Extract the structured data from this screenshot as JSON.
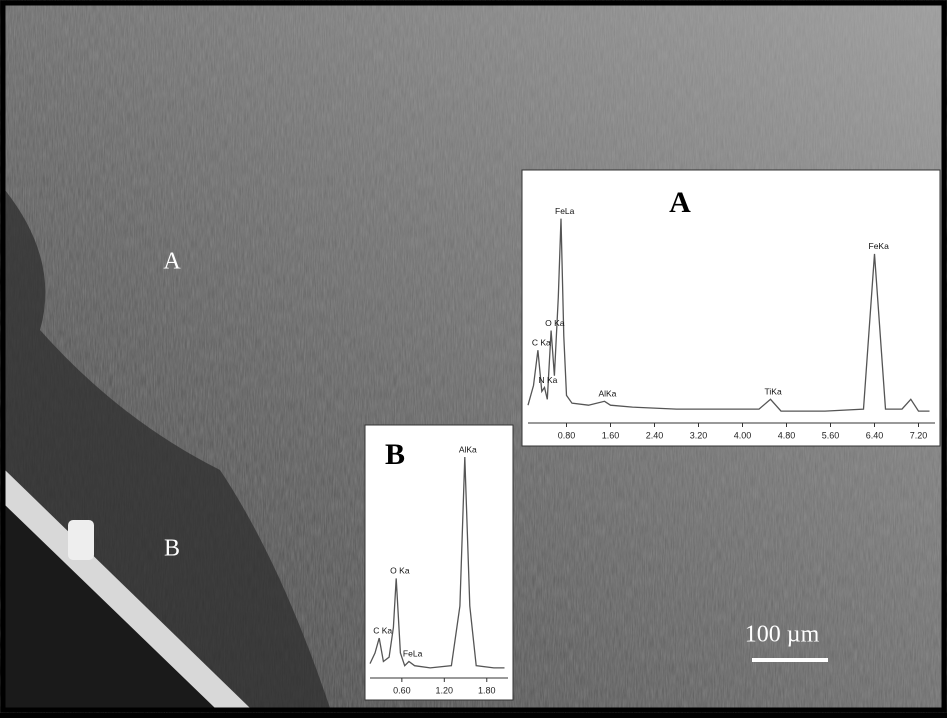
{
  "image": {
    "region_labels": [
      "A",
      "B"
    ],
    "scale_bar": "100 µm"
  },
  "chart_data": [
    {
      "type": "line",
      "title": "A",
      "color": "#555",
      "x": [
        0.1,
        0.2,
        0.28,
        0.35,
        0.4,
        0.45,
        0.52,
        0.58,
        0.65,
        0.7,
        0.75,
        0.8,
        0.9,
        1.2,
        1.49,
        1.6,
        2.0,
        2.8,
        3.6,
        4.3,
        4.51,
        4.7,
        5.5,
        6.2,
        6.4,
        6.6,
        6.9,
        7.06,
        7.2,
        7.4
      ],
      "values": [
        5,
        15,
        33,
        12,
        14,
        8,
        43,
        20,
        60,
        100,
        40,
        10,
        6,
        5,
        7,
        5,
        4,
        3,
        3,
        3,
        8,
        2,
        2,
        3,
        82,
        3,
        3,
        8,
        2,
        2
      ],
      "xlim": [
        0.1,
        7.5
      ],
      "ylim": [
        0,
        112
      ],
      "xticks": [
        {
          "value": 0.8,
          "label": "0.80"
        },
        {
          "value": 1.6,
          "label": "1.60"
        },
        {
          "value": 2.4,
          "label": "2.40"
        },
        {
          "value": 3.2,
          "label": "3.20"
        },
        {
          "value": 4.0,
          "label": "4.00"
        },
        {
          "value": 4.8,
          "label": "4.80"
        },
        {
          "value": 5.6,
          "label": "5.60"
        },
        {
          "value": 6.4,
          "label": "6.40"
        },
        {
          "value": 7.2,
          "label": "7.20"
        }
      ],
      "annotations": [
        {
          "text": "C Ka",
          "x": 0.28
        },
        {
          "text": "N Ka",
          "x": 0.4
        },
        {
          "text": "O Ka",
          "x": 0.52
        },
        {
          "text": "FeLa",
          "x": 0.7
        },
        {
          "text": "AlKa",
          "x": 1.49
        },
        {
          "text": "TiKa",
          "x": 4.51
        },
        {
          "text": "FeKa",
          "x": 6.4
        }
      ]
    },
    {
      "type": "line",
      "title": "B",
      "color": "#555",
      "x": [
        0.15,
        0.22,
        0.28,
        0.34,
        0.42,
        0.48,
        0.52,
        0.58,
        0.64,
        0.7,
        0.78,
        1.0,
        1.3,
        1.42,
        1.49,
        1.56,
        1.65,
        1.9,
        2.05
      ],
      "values": [
        3,
        8,
        15,
        4,
        6,
        20,
        43,
        8,
        2,
        4,
        2,
        1,
        2,
        30,
        100,
        30,
        2,
        1,
        1
      ],
      "xlim": [
        0.15,
        2.1
      ],
      "ylim": [
        0,
        108
      ],
      "xticks": [
        {
          "value": 0.6,
          "label": "0.60"
        },
        {
          "value": 1.2,
          "label": "1.20"
        },
        {
          "value": 1.8,
          "label": "1.80"
        }
      ],
      "annotations": [
        {
          "text": "C Ka",
          "x": 0.28
        },
        {
          "text": "O Ka",
          "x": 0.52
        },
        {
          "text": "FeLa",
          "x": 0.7
        },
        {
          "text": "AlKa",
          "x": 1.49
        }
      ]
    }
  ]
}
